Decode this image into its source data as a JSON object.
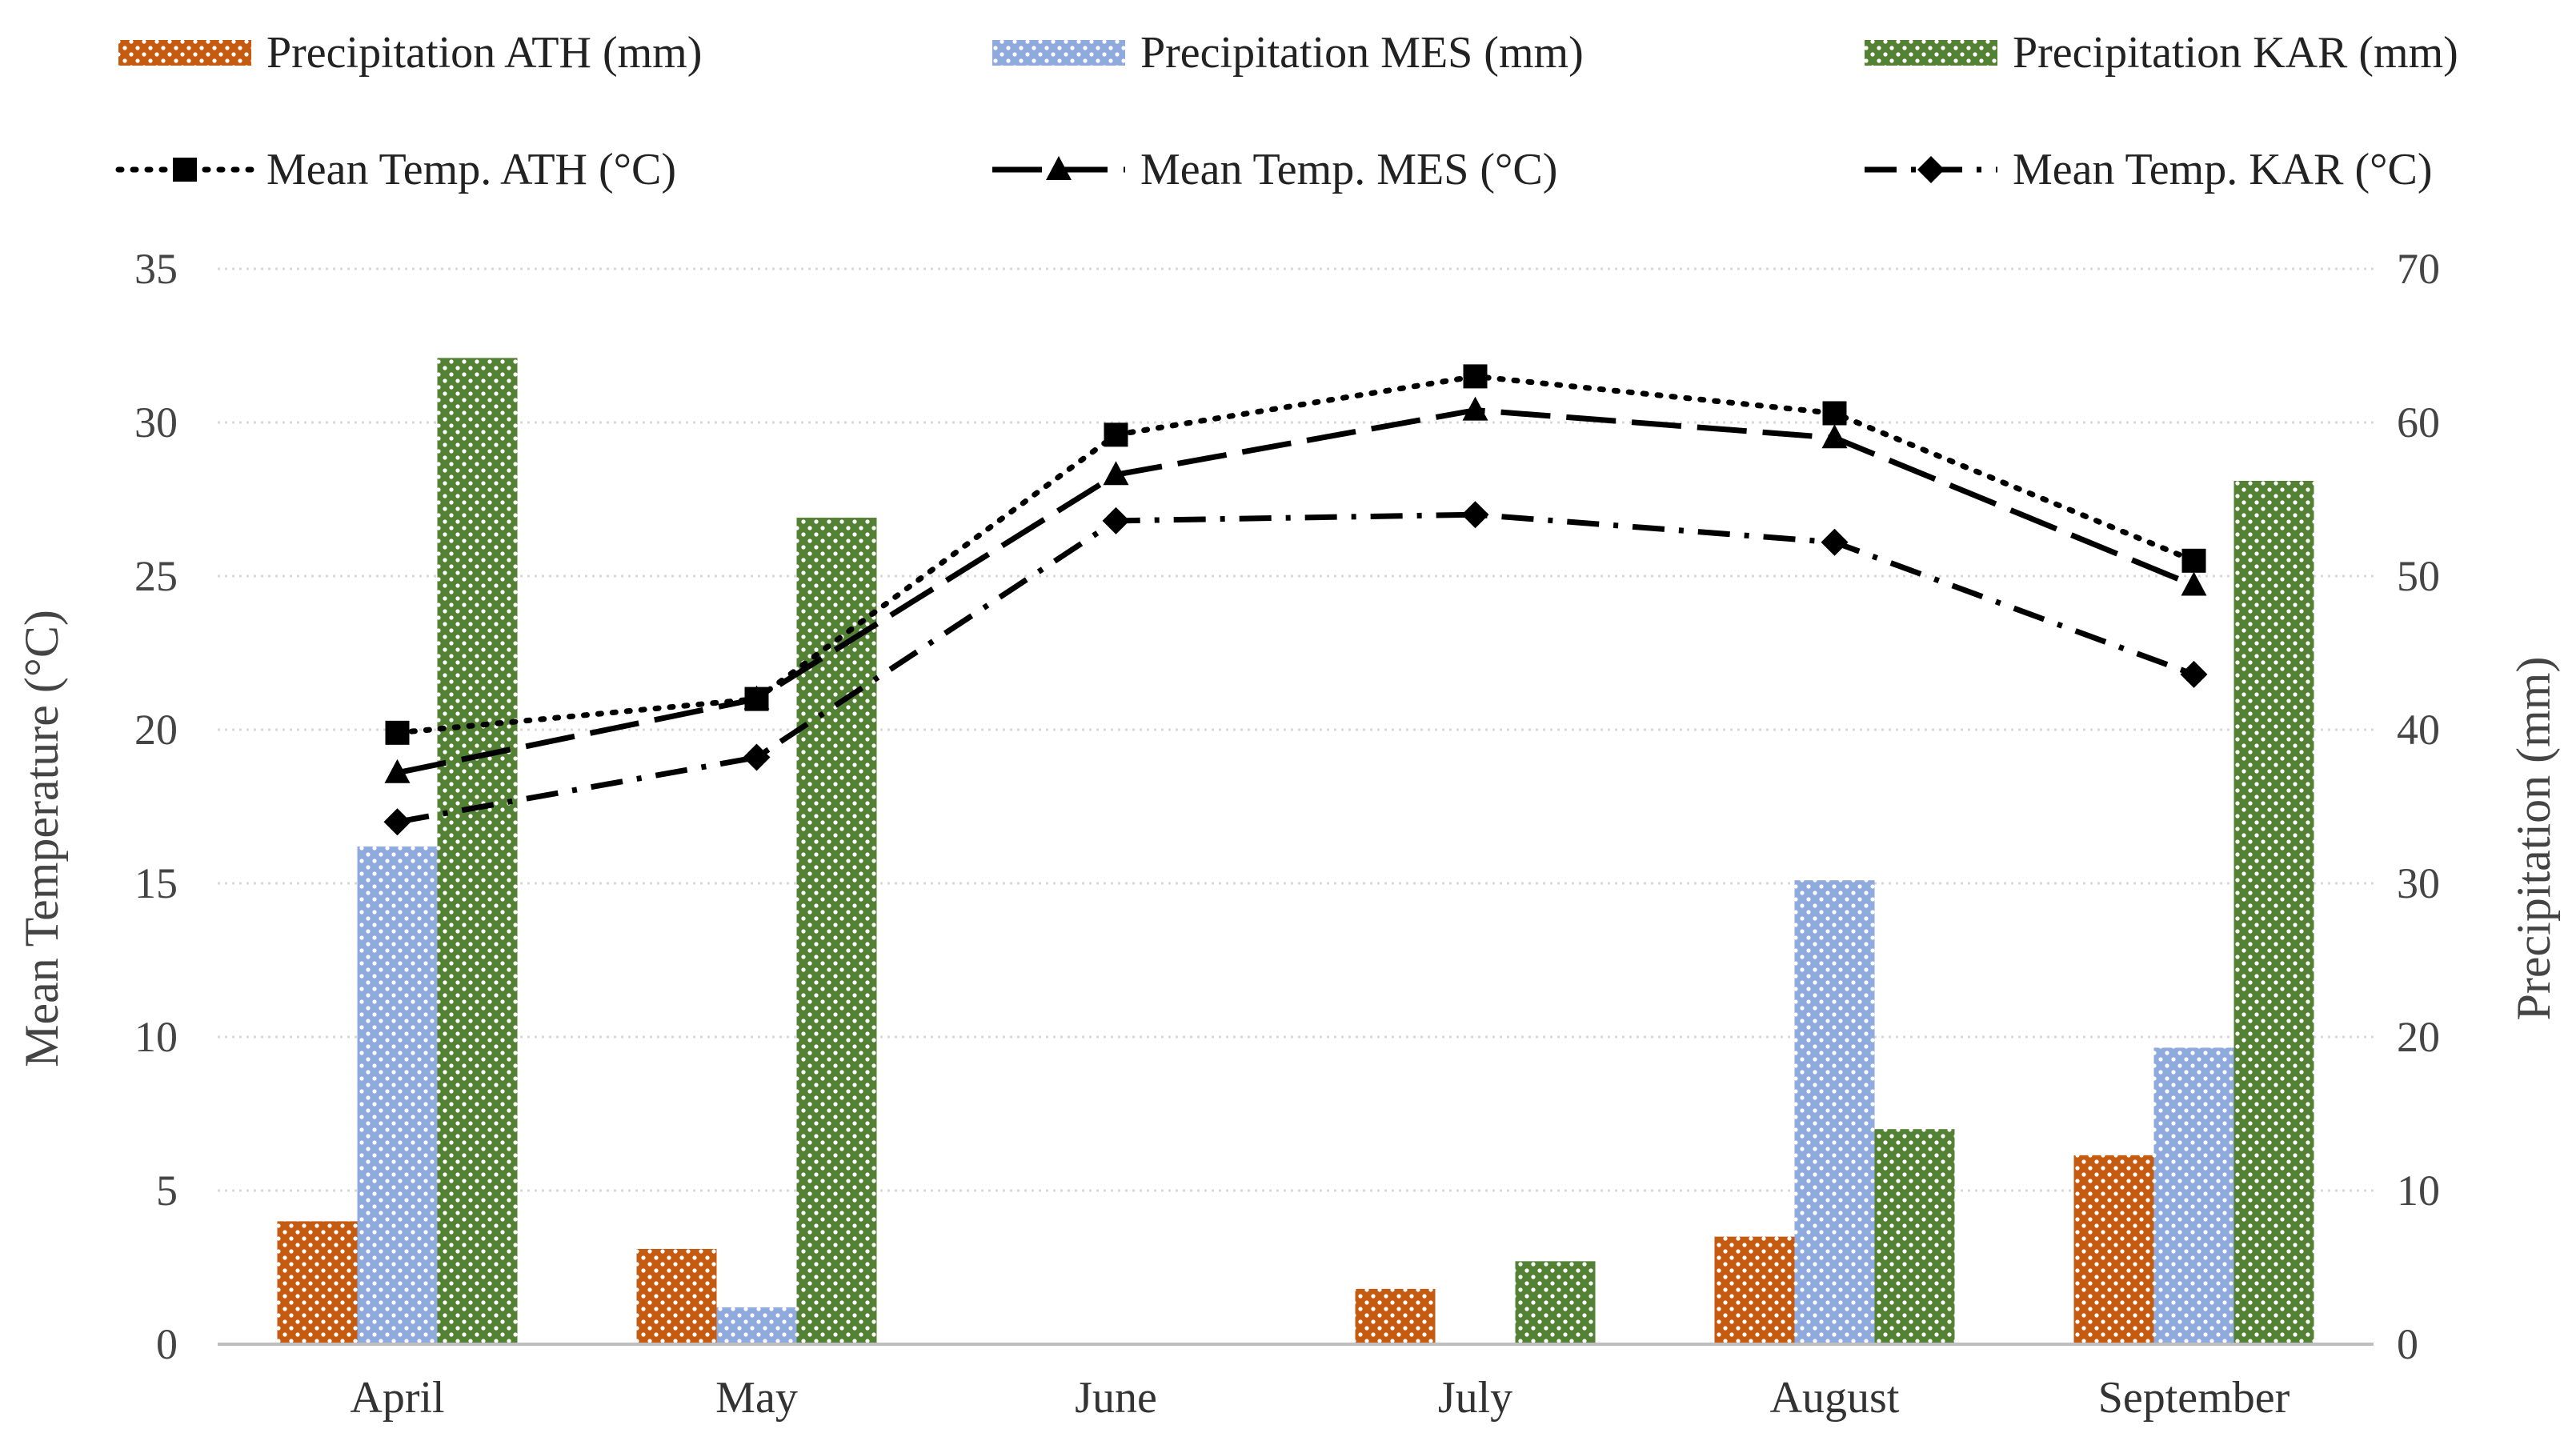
{
  "chart_data": {
    "type": "bar",
    "categories": [
      "April",
      "May",
      "June",
      "July",
      "August",
      "September"
    ],
    "y_left": {
      "label": "Mean Temperature (°C)",
      "lim": [
        0,
        35
      ],
      "ticks": [
        "0",
        "5",
        "10",
        "15",
        "20",
        "25",
        "30",
        "35"
      ]
    },
    "y_right": {
      "label": "Precipitation (mm)",
      "lim": [
        0,
        70
      ],
      "ticks": [
        "0",
        "10",
        "20",
        "30",
        "40",
        "50",
        "60",
        "70"
      ]
    },
    "bar_series": [
      {
        "name": "Precipitation ATH (mm)",
        "color": "#c55a11",
        "values": [
          8.0,
          6.2,
          0,
          3.6,
          7.0,
          12.3
        ]
      },
      {
        "name": "Precipitation MES (mm)",
        "color": "#8faadc",
        "values": [
          32.4,
          2.4,
          0,
          0,
          30.2,
          19.3
        ]
      },
      {
        "name": "Precipitation KAR (mm)",
        "color": "#548235",
        "values": [
          64.2,
          53.8,
          0,
          5.4,
          14.0,
          56.2
        ]
      }
    ],
    "line_series": [
      {
        "name": "Mean Temp. ATH (°C)",
        "marker": "square",
        "dash": "dotted",
        "values": [
          19.9,
          21.0,
          29.6,
          31.5,
          30.3,
          25.5
        ]
      },
      {
        "name": "Mean Temp. MES (°C)",
        "marker": "triangle",
        "dash": "long-dash",
        "values": [
          18.6,
          21.0,
          28.3,
          30.4,
          29.5,
          24.7
        ]
      },
      {
        "name": "Mean Temp. KAR (°C)",
        "marker": "diamond",
        "dash": "dash-dot",
        "values": [
          17.0,
          19.1,
          26.8,
          27.0,
          26.1,
          21.8
        ]
      }
    ],
    "grid": true,
    "legend_position": "top"
  }
}
